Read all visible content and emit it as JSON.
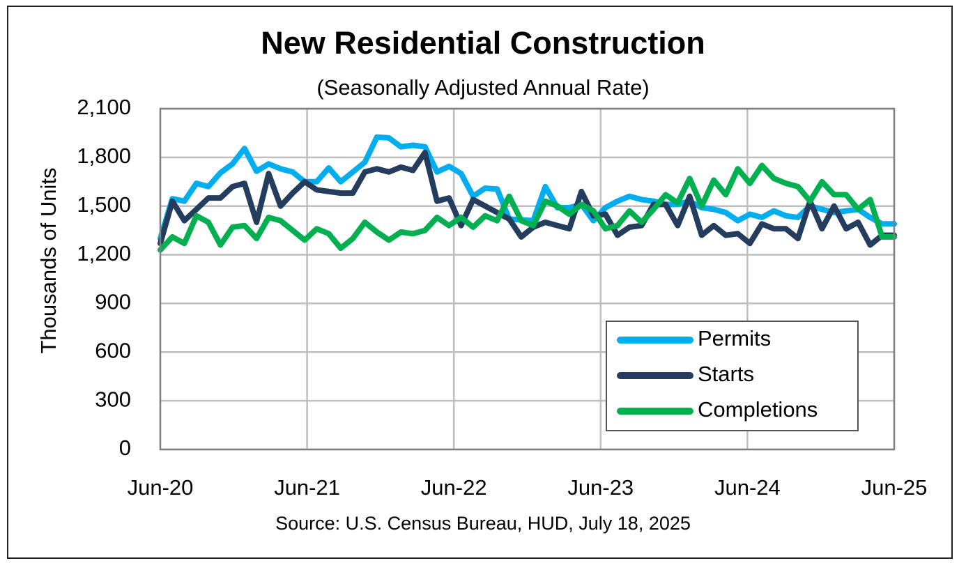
{
  "chart_data": {
    "type": "line",
    "title": "New Residential Construction",
    "subtitle": "(Seasonally Adjusted Annual Rate)",
    "ylabel": "Thousands of Units",
    "source": "Source:  U.S. Census Bureau, HUD, July 18, 2025",
    "ylim": [
      0,
      2100
    ],
    "yticks": [
      "0",
      "300",
      "600",
      "900",
      "1,200",
      "1,500",
      "1,800",
      "2,100"
    ],
    "xtick_labels": [
      "Jun-20",
      "Jun-21",
      "Jun-22",
      "Jun-23",
      "Jun-24",
      "Jun-25"
    ],
    "grid": true,
    "legend_position": "bottom-right",
    "x_start": "Jun-20",
    "x_end": "Jun-25",
    "series": [
      {
        "name": "Permits",
        "color": "#00AEEF",
        "values": [
          1300,
          1545,
          1530,
          1640,
          1620,
          1705,
          1760,
          1855,
          1715,
          1760,
          1730,
          1710,
          1650,
          1650,
          1735,
          1650,
          1710,
          1770,
          1925,
          1920,
          1865,
          1875,
          1865,
          1710,
          1745,
          1700,
          1560,
          1610,
          1605,
          1420,
          1415,
          1410,
          1620,
          1490,
          1490,
          1510,
          1410,
          1490,
          1530,
          1560,
          1540,
          1530,
          1510,
          1510,
          1530,
          1490,
          1480,
          1460,
          1410,
          1450,
          1430,
          1470,
          1440,
          1430,
          1500,
          1480,
          1460,
          1470,
          1480,
          1430,
          1390,
          1390
        ]
      },
      {
        "name": "Starts",
        "color": "#243D5E",
        "values": [
          1270,
          1530,
          1410,
          1480,
          1550,
          1550,
          1620,
          1640,
          1400,
          1700,
          1500,
          1580,
          1650,
          1600,
          1590,
          1580,
          1580,
          1710,
          1730,
          1710,
          1740,
          1720,
          1830,
          1530,
          1550,
          1380,
          1540,
          1500,
          1460,
          1420,
          1310,
          1370,
          1400,
          1380,
          1360,
          1590,
          1440,
          1450,
          1320,
          1370,
          1380,
          1510,
          1510,
          1380,
          1560,
          1320,
          1380,
          1320,
          1330,
          1270,
          1390,
          1360,
          1360,
          1300,
          1530,
          1360,
          1500,
          1360,
          1400,
          1260,
          1320,
          1320
        ]
      },
      {
        "name": "Completions",
        "color": "#00B050",
        "values": [
          1230,
          1310,
          1270,
          1440,
          1400,
          1260,
          1370,
          1380,
          1300,
          1430,
          1410,
          1350,
          1290,
          1360,
          1330,
          1240,
          1300,
          1400,
          1340,
          1290,
          1340,
          1330,
          1350,
          1430,
          1380,
          1430,
          1370,
          1440,
          1410,
          1560,
          1410,
          1380,
          1530,
          1500,
          1450,
          1510,
          1470,
          1360,
          1380,
          1470,
          1400,
          1480,
          1570,
          1520,
          1670,
          1500,
          1660,
          1570,
          1730,
          1640,
          1750,
          1670,
          1640,
          1620,
          1530,
          1650,
          1570,
          1570,
          1480,
          1540,
          1310,
          1310
        ]
      }
    ]
  }
}
